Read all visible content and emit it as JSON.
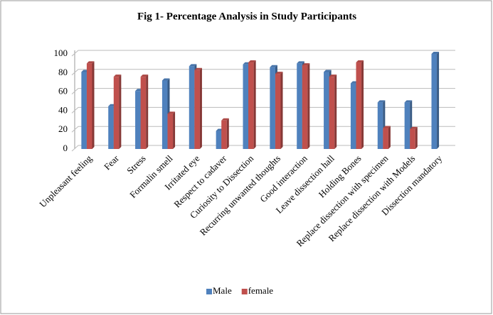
{
  "chart_data": {
    "type": "bar",
    "title": "Fig 1- Percentage Analysis in  Study Participants",
    "categories": [
      "Unpleasant feeling",
      "Fear",
      "Stress",
      "Formalin smell",
      "Irritated eye",
      "Respect to cadaver",
      "Curiosity to Dissection",
      "Recurring unwanted thoughts",
      "Good interaction",
      "Leave dissection hall",
      "Holding Bones",
      "Replace dissection with specimen",
      "Replace dissection with Models",
      "Dissection mandatory"
    ],
    "series": [
      {
        "name": "Male",
        "color": "#4f81bd",
        "values": [
          81,
          45,
          61,
          72,
          87,
          19,
          89,
          86,
          90,
          81,
          69,
          49,
          49,
          100
        ]
      },
      {
        "name": "female",
        "color": "#c0504d",
        "values": [
          90,
          76,
          76,
          37,
          83,
          30,
          91,
          79,
          88,
          76,
          91,
          22,
          21,
          0
        ]
      }
    ],
    "ylim": [
      0,
      100
    ],
    "yticks": [
      0,
      20,
      40,
      60,
      80,
      100
    ],
    "grid": true,
    "legend": "bottom"
  }
}
